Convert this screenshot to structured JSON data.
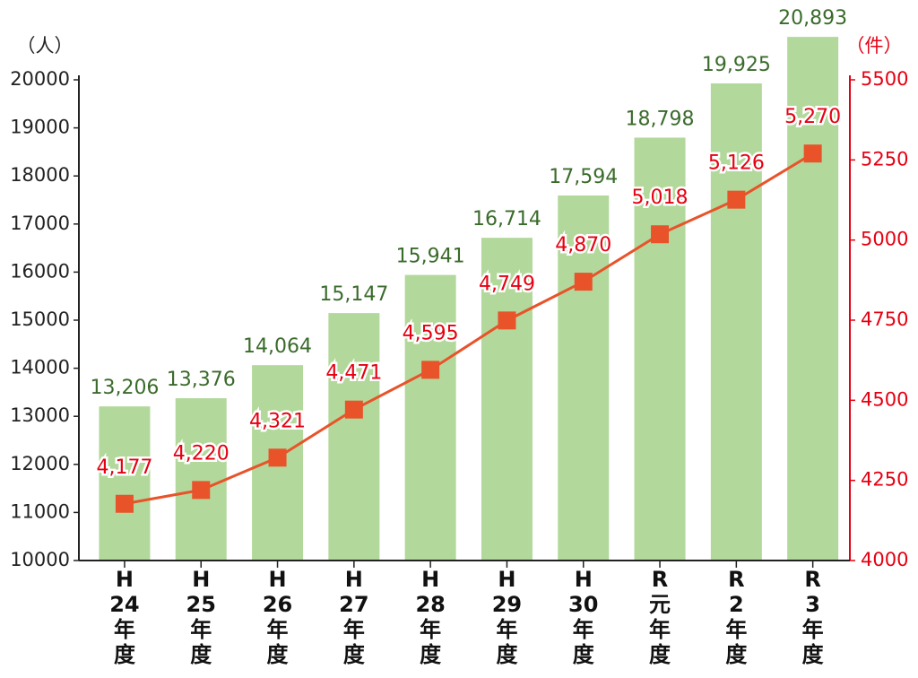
{
  "chart_data": {
    "type": "bar_line",
    "y_label": "（人）",
    "y2_label": "（件）",
    "categories": [
      "H24年度",
      "H25年度",
      "H26年度",
      "H27年度",
      "H28年度",
      "H29年度",
      "H30年度",
      "R元年度",
      "R2年度",
      "R3年度"
    ],
    "series": [
      {
        "name": "人",
        "type": "bar",
        "color": "#b3d89c",
        "label_color": "#3a6b2b",
        "axis": "y",
        "values": [
          13206,
          13376,
          14064,
          15147,
          15941,
          16714,
          17594,
          18798,
          19925,
          20893
        ],
        "value_labels": [
          "13,206",
          "13,376",
          "14,064",
          "15,147",
          "15,941",
          "16,714",
          "17,594",
          "18,798",
          "19,925",
          "20,893"
        ]
      },
      {
        "name": "件",
        "type": "line",
        "color": "#e8532a",
        "label_color": "#e60012",
        "axis": "y2",
        "values": [
          4177,
          4220,
          4321,
          4471,
          4595,
          4749,
          4870,
          5018,
          5126,
          5270
        ],
        "value_labels": [
          "4,177",
          "4,220",
          "4,321",
          "4,471",
          "4,595",
          "4,749",
          "4,870",
          "5,018",
          "5,126",
          "5,270"
        ]
      }
    ],
    "ylim": [
      10000,
      20000
    ],
    "yticks": [
      10000,
      11000,
      12000,
      13000,
      14000,
      15000,
      16000,
      17000,
      18000,
      19000,
      20000
    ],
    "y2lim": [
      4000,
      5500
    ],
    "y2ticks": [
      4000,
      4250,
      4500,
      4750,
      5000,
      5250,
      5500
    ]
  }
}
